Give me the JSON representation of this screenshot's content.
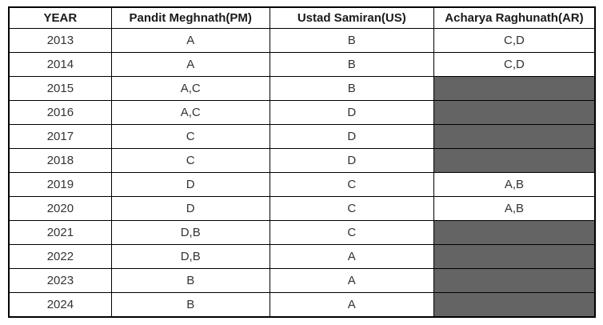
{
  "colors": {
    "background": "#ffffff",
    "border": "#000000",
    "header_text": "#1a1a1a",
    "body_text": "#333333",
    "filled_cell": "#646464"
  },
  "table": {
    "columns": [
      {
        "key": "year",
        "label": "YEAR"
      },
      {
        "key": "pm",
        "label": "Pandit Meghnath(PM)"
      },
      {
        "key": "us",
        "label": "Ustad Samiran(US)"
      },
      {
        "key": "ar",
        "label": "Acharya Raghunath(AR)"
      }
    ],
    "rows": [
      {
        "year": "2013",
        "pm": "A",
        "us": "B",
        "ar": "C,D",
        "ar_filled": false
      },
      {
        "year": "2014",
        "pm": "A",
        "us": "B",
        "ar": "C,D",
        "ar_filled": false
      },
      {
        "year": "2015",
        "pm": "A,C",
        "us": "B",
        "ar": "",
        "ar_filled": true
      },
      {
        "year": "2016",
        "pm": "A,C",
        "us": "D",
        "ar": "",
        "ar_filled": true
      },
      {
        "year": "2017",
        "pm": "C",
        "us": "D",
        "ar": "",
        "ar_filled": true
      },
      {
        "year": "2018",
        "pm": "C",
        "us": "D",
        "ar": "",
        "ar_filled": true
      },
      {
        "year": "2019",
        "pm": "D",
        "us": "C",
        "ar": "A,B",
        "ar_filled": false
      },
      {
        "year": "2020",
        "pm": "D",
        "us": "C",
        "ar": "A,B",
        "ar_filled": false
      },
      {
        "year": "2021",
        "pm": "D,B",
        "us": "C",
        "ar": "",
        "ar_filled": true
      },
      {
        "year": "2022",
        "pm": "D,B",
        "us": "A",
        "ar": "",
        "ar_filled": true
      },
      {
        "year": "2023",
        "pm": "B",
        "us": "A",
        "ar": "",
        "ar_filled": true
      },
      {
        "year": "2024",
        "pm": "B",
        "us": "A",
        "ar": "",
        "ar_filled": true
      }
    ]
  },
  "chart_data": {
    "type": "table",
    "columns": [
      "YEAR",
      "Pandit Meghnath(PM)",
      "Ustad Samiran(US)",
      "Acharya Raghunath(AR)"
    ],
    "rows": [
      [
        "2013",
        "A",
        "B",
        "C,D"
      ],
      [
        "2014",
        "A",
        "B",
        "C,D"
      ],
      [
        "2015",
        "A,C",
        "B",
        ""
      ],
      [
        "2016",
        "A,C",
        "D",
        ""
      ],
      [
        "2017",
        "C",
        "D",
        ""
      ],
      [
        "2018",
        "C",
        "D",
        ""
      ],
      [
        "2019",
        "D",
        "C",
        "A,B"
      ],
      [
        "2020",
        "D",
        "C",
        "A,B"
      ],
      [
        "2021",
        "D,B",
        "C",
        ""
      ],
      [
        "2022",
        "D,B",
        "A",
        ""
      ],
      [
        "2023",
        "B",
        "A",
        ""
      ],
      [
        "2024",
        "B",
        "A",
        ""
      ]
    ],
    "notes": "Empty cells in the Acharya Raghunath(AR) column are shaded solid dark gray (#646464)."
  }
}
